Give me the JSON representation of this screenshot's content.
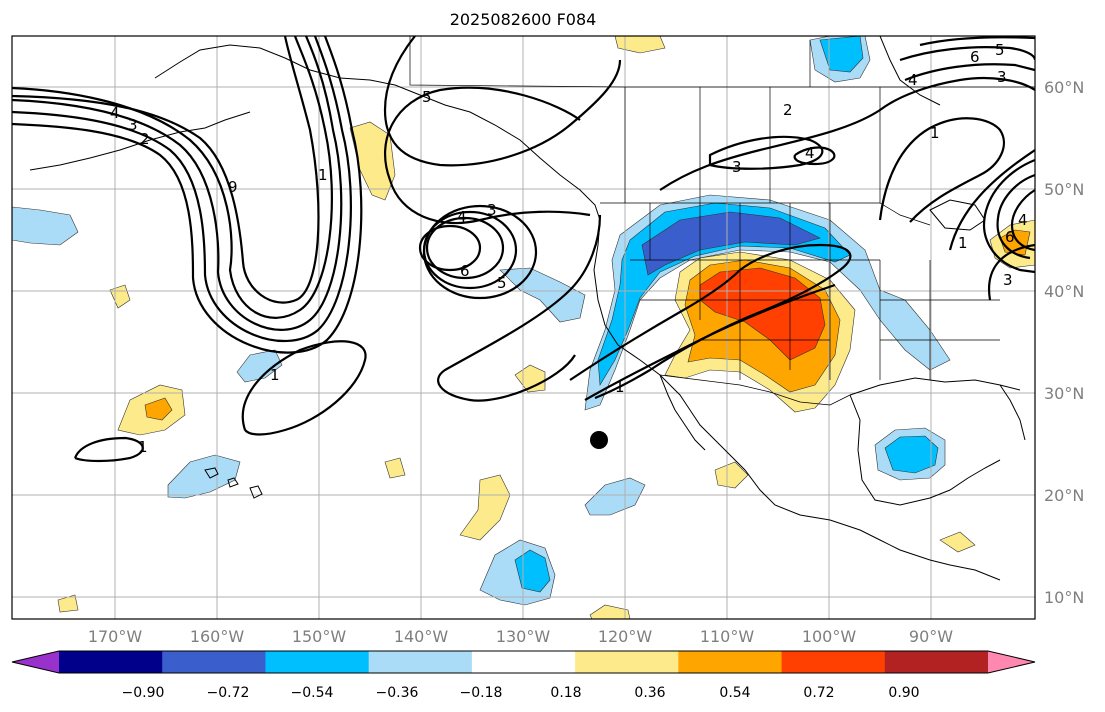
{
  "title": "2025082600 F084",
  "lon_labels": [
    "170°W",
    "160°W",
    "150°W",
    "140°W",
    "130°W",
    "120°W",
    "110°W",
    "100°W",
    "90°W"
  ],
  "lat_labels": [
    "60°N",
    "50°N",
    "40°N",
    "30°N",
    "20°N",
    "10°N"
  ],
  "contour_labels": [
    "4",
    "3",
    "2",
    "9",
    "1",
    "5",
    "4",
    "3",
    "6",
    "5",
    "1",
    "1",
    "1",
    "1",
    "2",
    "4",
    "3",
    "4",
    "1",
    "6",
    "5",
    "3",
    "4",
    "6",
    "3"
  ],
  "colorbar": {
    "colors": [
      "#9932cc",
      "#00008b",
      "#3a5fcd",
      "#00bfff",
      "#aadcf7",
      "#ffffff",
      "#fdea8a",
      "#ffa500",
      "#ff4000",
      "#b22222",
      "#ff88b0"
    ],
    "labels": [
      "−0.90",
      "−0.72",
      "−0.54",
      "−0.36",
      "−0.18",
      "0.18",
      "0.36",
      "0.54",
      "0.72",
      "0.90"
    ]
  },
  "marker": {
    "label": "",
    "color": "#000000"
  }
}
